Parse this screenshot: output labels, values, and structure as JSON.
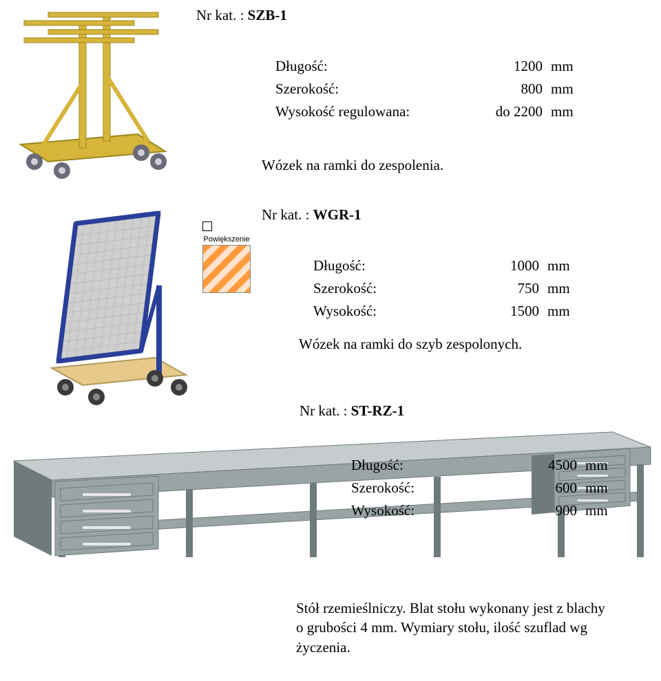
{
  "p1": {
    "kat_label": "Nr kat. : ",
    "kat_code": "SZB-1",
    "specs": [
      {
        "label": "Długość:",
        "value": "1200",
        "unit": "mm"
      },
      {
        "label": "Szerokość:",
        "value": "800",
        "unit": "mm"
      },
      {
        "label": "Wysokość regulowana:",
        "value": "do 2200",
        "unit": "mm"
      }
    ],
    "desc": "Wózek na ramki do zespolenia.",
    "img": {
      "frame_color": "#d6b53a",
      "wheel_color": "#6a6a78",
      "hub_color": "#d0d0d8"
    }
  },
  "p2": {
    "kat_label": "Nr kat. : ",
    "kat_code": "WGR-1",
    "specs": [
      {
        "label": "Długość:",
        "value": "1000",
        "unit": "mm"
      },
      {
        "label": "Szerokość:",
        "value": "750",
        "unit": "mm"
      },
      {
        "label": "Wysokość:",
        "value": "1500",
        "unit": "mm"
      }
    ],
    "desc": "Wózek na ramki do szyb zespolonych.",
    "swatch_label": "Powiększenie",
    "img": {
      "frame_color": "#2a3f99",
      "mesh_color": "#cfcfcf",
      "board_color": "#e7c98b",
      "wheel_color": "#3a3a3a"
    }
  },
  "p3": {
    "kat_label": "Nr kat. : ",
    "kat_code": "ST-RZ-1",
    "specs": [
      {
        "label": "Długość:",
        "value": "4500",
        "unit": "mm"
      },
      {
        "label": "Szerokość:",
        "value": "600",
        "unit": "mm"
      },
      {
        "label": "Wysokość:",
        "value": "900",
        "unit": "mm"
      }
    ],
    "desc_lines": [
      "Stół rzemieślniczy. Blat stołu wykonany jest z blachy",
      "o grubości 4 mm. Wymiary stołu, ilość szuflad wg",
      "życzenia."
    ],
    "img": {
      "body_color": "#9aa4a7",
      "top_color": "#c6ccce",
      "dark_color": "#6f7a7d",
      "handle_color": "#e8e8e8"
    }
  }
}
